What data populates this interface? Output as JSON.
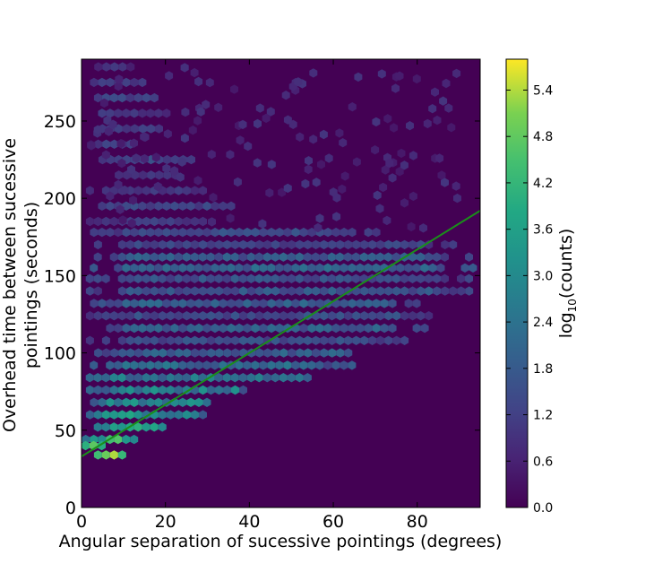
{
  "chart_data": {
    "type": "heatmap",
    "subtype": "hexbin",
    "title": "",
    "xlabel": "Angular separation of sucessive pointings (degrees)",
    "ylabel_line1": "Overhead time between sucessive",
    "ylabel_line2": "pointings (seconds)",
    "xlim": [
      0,
      95
    ],
    "ylim": [
      0,
      290
    ],
    "x_ticks": [
      0,
      20,
      40,
      60,
      80
    ],
    "x_tick_labels": [
      "0",
      "20",
      "40",
      "60",
      "80"
    ],
    "y_ticks": [
      0,
      50,
      100,
      150,
      200,
      250
    ],
    "y_tick_labels": [
      "0",
      "50",
      "100",
      "150",
      "200",
      "250"
    ],
    "background_color": "#440154",
    "fit_line": {
      "color": "#1a8f1a",
      "x": [
        0,
        95
      ],
      "y": [
        33,
        192
      ]
    },
    "colorbar": {
      "label_main": "log",
      "label_sub": "10",
      "label_rest": "(counts)",
      "range": [
        0.0,
        5.8
      ],
      "ticks": [
        0.0,
        0.6,
        1.2,
        1.8,
        2.4,
        3.0,
        3.6,
        4.2,
        4.8,
        5.4
      ],
      "tick_labels": [
        "0.0",
        "0.6",
        "1.2",
        "1.8",
        "2.4",
        "3.0",
        "3.6",
        "4.2",
        "4.8",
        "5.4"
      ]
    },
    "bands": [
      {
        "y": 285,
        "xmin": 4,
        "xmax": 12,
        "level": 0.9
      },
      {
        "y": 275,
        "xmin": 2,
        "xmax": 16,
        "level": 1.1
      },
      {
        "y": 265,
        "xmin": 2,
        "xmax": 20,
        "level": 1.3
      },
      {
        "y": 255,
        "xmin": 2,
        "xmax": 22,
        "level": 1.0
      },
      {
        "y": 245,
        "xmin": 5,
        "xmax": 20,
        "level": 1.1
      },
      {
        "y": 235,
        "xmin": 3,
        "xmax": 14,
        "level": 1.2
      },
      {
        "y": 225,
        "xmin": 5,
        "xmax": 28,
        "level": 1.4
      },
      {
        "y": 215,
        "xmin": 6,
        "xmax": 24,
        "level": 1.0
      },
      {
        "y": 205,
        "xmin": 2,
        "xmax": 30,
        "level": 1.0
      },
      {
        "y": 195,
        "xmin": 2,
        "xmax": 38,
        "level": 1.3
      },
      {
        "y": 185,
        "xmin": 2,
        "xmax": 30,
        "level": 1.1
      },
      {
        "y": 178,
        "xmin": 2,
        "xmax": 72,
        "level": 1.5
      },
      {
        "y": 170,
        "xmin": 2,
        "xmax": 90,
        "level": 1.3
      },
      {
        "y": 162,
        "xmin": 1,
        "xmax": 95,
        "level": 1.8
      },
      {
        "y": 155,
        "xmin": 1,
        "xmax": 95,
        "level": 2.0
      },
      {
        "y": 148,
        "xmin": 1,
        "xmax": 95,
        "level": 1.6
      },
      {
        "y": 140,
        "xmin": 2,
        "xmax": 93,
        "level": 1.7
      },
      {
        "y": 132,
        "xmin": 2,
        "xmax": 80,
        "level": 1.9
      },
      {
        "y": 124,
        "xmin": 2,
        "xmax": 84,
        "level": 1.5
      },
      {
        "y": 116,
        "xmin": 2,
        "xmax": 82,
        "level": 1.9
      },
      {
        "y": 108,
        "xmin": 2,
        "xmax": 78,
        "level": 1.5
      },
      {
        "y": 100,
        "xmin": 3,
        "xmax": 70,
        "level": 1.9
      },
      {
        "y": 92,
        "xmin": 1,
        "xmax": 65,
        "level": 2.2
      },
      {
        "y": 84,
        "xmin": 1,
        "xmax": 58,
        "level": 2.6
      },
      {
        "y": 76,
        "xmin": 2,
        "xmax": 42,
        "level": 2.8
      },
      {
        "y": 68,
        "xmin": 2,
        "xmax": 34,
        "level": 3.0
      },
      {
        "y": 60,
        "xmin": 2,
        "xmax": 30,
        "level": 3.3
      },
      {
        "y": 52,
        "xmin": 1,
        "xmax": 22,
        "level": 3.6
      },
      {
        "y": 44,
        "xmin": 1,
        "xmax": 14,
        "level": 4.0
      },
      {
        "y": 40,
        "xmin": 0,
        "xmax": 5,
        "level": 5.6
      },
      {
        "y": 34,
        "xmin": 2,
        "xmax": 10,
        "level": 4.8
      }
    ]
  }
}
